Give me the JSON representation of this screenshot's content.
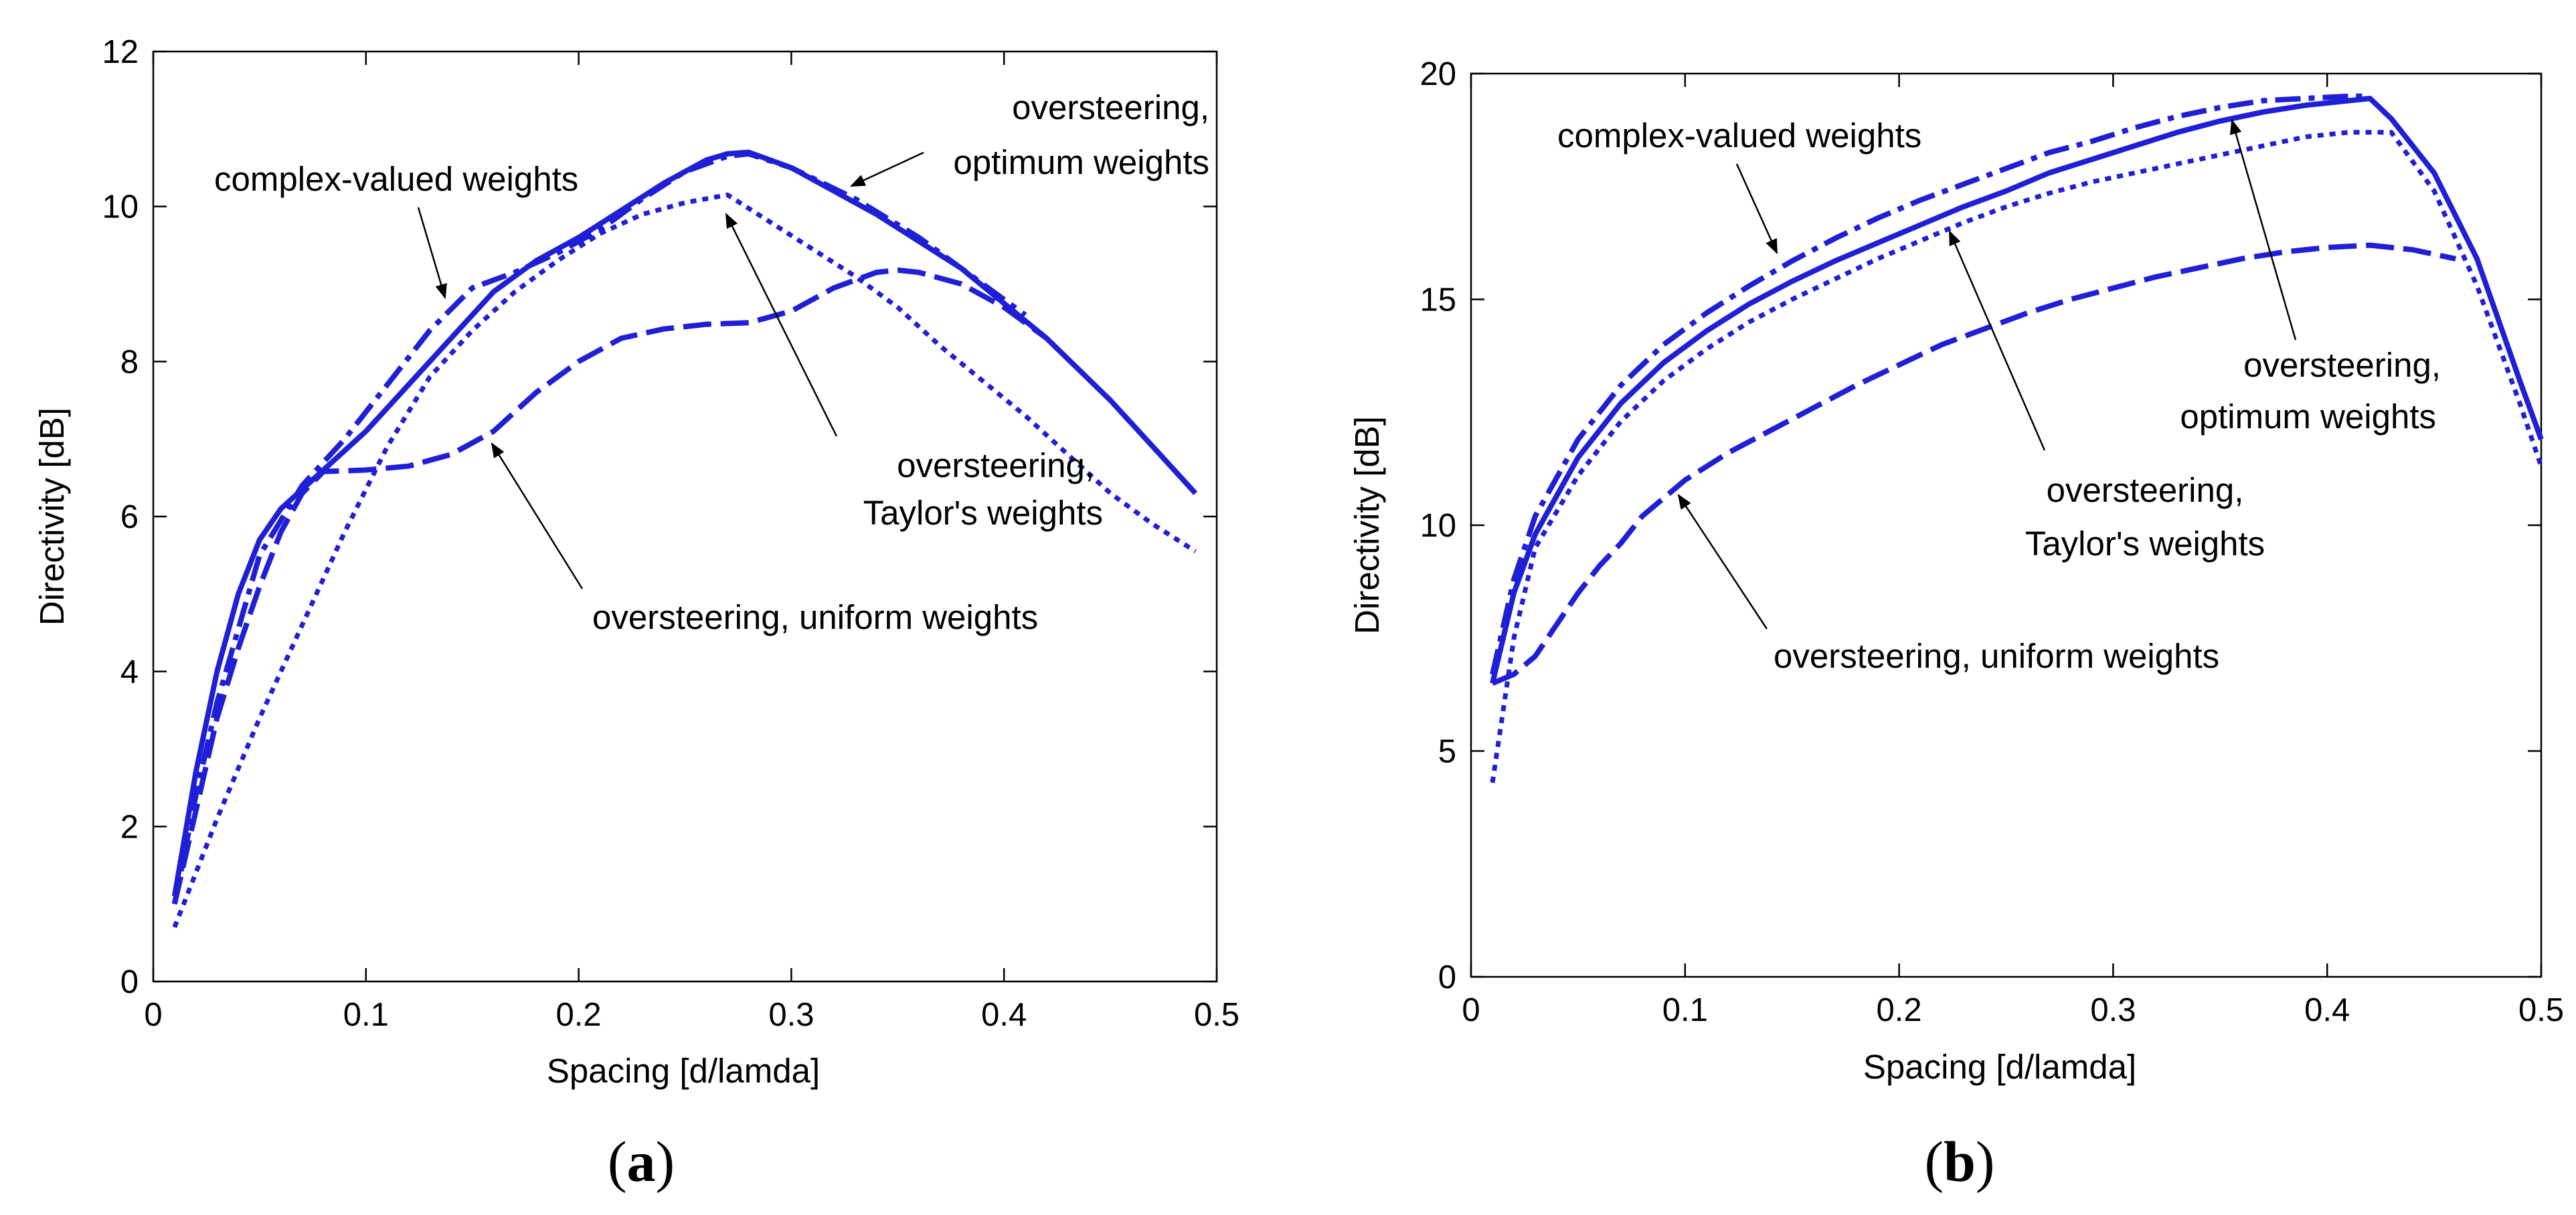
{
  "chart_data": [
    {
      "type": "line",
      "panel_label": "a",
      "xlabel": "Spacing [d/lamda]",
      "ylabel": "Directivity [dB]",
      "xlim": [
        0,
        0.5
      ],
      "ylim": [
        0,
        12
      ],
      "xticks": [
        0,
        0.1,
        0.2,
        0.3,
        0.4,
        0.5
      ],
      "xtick_labels": [
        "0",
        "0.1",
        "0.2",
        "0.3",
        "0.4",
        "0.5"
      ],
      "yticks": [
        0,
        2,
        4,
        6,
        8,
        10,
        12
      ],
      "ytick_labels": [
        "0",
        "2",
        "4",
        "6",
        "8",
        "10",
        "12"
      ],
      "color": "#1f1fd6",
      "series": [
        {
          "name": "oversteering, optimum weights",
          "style": "solid",
          "x": [
            0.01,
            0.02,
            0.03,
            0.04,
            0.05,
            0.06,
            0.08,
            0.1,
            0.12,
            0.14,
            0.16,
            0.18,
            0.2,
            0.22,
            0.24,
            0.26,
            0.27,
            0.28,
            0.3,
            0.32,
            0.34,
            0.36,
            0.38,
            0.4,
            0.42,
            0.45,
            0.47,
            0.49
          ],
          "y": [
            1.1,
            2.7,
            4.0,
            5.0,
            5.7,
            6.1,
            6.6,
            7.1,
            7.7,
            8.3,
            8.9,
            9.3,
            9.6,
            9.95,
            10.3,
            10.6,
            10.68,
            10.7,
            10.5,
            10.2,
            9.9,
            9.55,
            9.2,
            8.75,
            8.3,
            7.5,
            6.9,
            6.3
          ]
        },
        {
          "name": "complex-valued weights",
          "style": "dashdot",
          "x": [
            0.01,
            0.02,
            0.03,
            0.05,
            0.07,
            0.09,
            0.11,
            0.13,
            0.15,
            0.17,
            0.19,
            0.21,
            0.23,
            0.25,
            0.27,
            0.28,
            0.3,
            0.33,
            0.36,
            0.39,
            0.41
          ],
          "y": [
            1.0,
            2.4,
            3.6,
            5.5,
            6.4,
            7.0,
            7.7,
            8.4,
            8.95,
            9.15,
            9.4,
            9.7,
            10.1,
            10.45,
            10.65,
            10.68,
            10.5,
            10.1,
            9.6,
            9.0,
            8.6
          ]
        },
        {
          "name": "oversteering, Taylor's weights",
          "style": "dotted",
          "x": [
            0.01,
            0.03,
            0.05,
            0.07,
            0.09,
            0.11,
            0.13,
            0.15,
            0.17,
            0.19,
            0.21,
            0.23,
            0.25,
            0.27,
            0.29,
            0.31,
            0.33,
            0.35,
            0.37,
            0.39,
            0.41,
            0.43,
            0.45,
            0.47,
            0.49
          ],
          "y": [
            0.7,
            2.1,
            3.4,
            4.6,
            5.8,
            6.9,
            7.8,
            8.4,
            8.9,
            9.3,
            9.65,
            9.9,
            10.05,
            10.15,
            9.8,
            9.45,
            9.1,
            8.7,
            8.2,
            7.75,
            7.3,
            6.8,
            6.3,
            5.9,
            5.55
          ]
        },
        {
          "name": "oversteering, uniform weights",
          "style": "dashed",
          "x": [
            0.01,
            0.02,
            0.03,
            0.04,
            0.05,
            0.06,
            0.07,
            0.08,
            0.1,
            0.12,
            0.14,
            0.16,
            0.18,
            0.2,
            0.22,
            0.24,
            0.26,
            0.28,
            0.3,
            0.32,
            0.34,
            0.35,
            0.36,
            0.38,
            0.4,
            0.42
          ],
          "y": [
            1.0,
            2.2,
            3.4,
            4.3,
            5.1,
            5.8,
            6.3,
            6.58,
            6.6,
            6.65,
            6.8,
            7.1,
            7.6,
            8.0,
            8.3,
            8.42,
            8.48,
            8.5,
            8.65,
            8.95,
            9.15,
            9.18,
            9.15,
            9.0,
            8.7,
            8.3
          ]
        }
      ],
      "annotations": [
        {
          "lines": [
            "complex-valued weights"
          ],
          "target_series": "complex-valued weights"
        },
        {
          "lines": [
            "oversteering,",
            "optimum weights"
          ],
          "target_series": "oversteering, optimum weights"
        },
        {
          "lines": [
            "oversteering,",
            "Taylor's weights"
          ],
          "target_series": "oversteering, Taylor's weights"
        },
        {
          "lines": [
            "oversteering, uniform weights"
          ],
          "target_series": "oversteering, uniform weights"
        }
      ]
    },
    {
      "type": "line",
      "panel_label": "b",
      "xlabel": "Spacing [d/lamda]",
      "ylabel": "Directivity [dB]",
      "xlim": [
        0,
        0.5
      ],
      "ylim": [
        0,
        20
      ],
      "xticks": [
        0,
        0.1,
        0.2,
        0.3,
        0.4,
        0.5
      ],
      "xtick_labels": [
        "0",
        "0.1",
        "0.2",
        "0.3",
        "0.4",
        "0.5"
      ],
      "yticks": [
        0,
        5,
        10,
        15,
        20
      ],
      "ytick_labels": [
        "0",
        "5",
        "10",
        "15",
        "20"
      ],
      "color": "#1f1fd6",
      "series": [
        {
          "name": "oversteering, optimum weights",
          "style": "solid",
          "x": [
            0.01,
            0.02,
            0.03,
            0.05,
            0.07,
            0.09,
            0.11,
            0.13,
            0.15,
            0.17,
            0.19,
            0.21,
            0.23,
            0.25,
            0.27,
            0.29,
            0.31,
            0.33,
            0.35,
            0.37,
            0.39,
            0.41,
            0.42,
            0.43,
            0.45,
            0.47,
            0.49,
            0.5
          ],
          "y": [
            6.5,
            8.5,
            9.8,
            11.5,
            12.7,
            13.6,
            14.3,
            14.9,
            15.4,
            15.85,
            16.25,
            16.65,
            17.05,
            17.4,
            17.8,
            18.1,
            18.4,
            18.7,
            18.95,
            19.15,
            19.3,
            19.4,
            19.45,
            19.0,
            17.8,
            15.9,
            13.2,
            11.9
          ]
        },
        {
          "name": "complex-valued weights",
          "style": "dashdot",
          "x": [
            0.01,
            0.02,
            0.03,
            0.05,
            0.07,
            0.09,
            0.11,
            0.13,
            0.15,
            0.17,
            0.19,
            0.21,
            0.23,
            0.25,
            0.27,
            0.29,
            0.31,
            0.33,
            0.35,
            0.37,
            0.39,
            0.41,
            0.42
          ],
          "y": [
            6.7,
            8.8,
            10.2,
            11.9,
            13.1,
            14.0,
            14.7,
            15.3,
            15.85,
            16.35,
            16.8,
            17.2,
            17.55,
            17.9,
            18.25,
            18.5,
            18.8,
            19.05,
            19.25,
            19.4,
            19.45,
            19.5,
            19.5
          ]
        },
        {
          "name": "oversteering, Taylor's weights",
          "style": "dotted",
          "x": [
            0.01,
            0.02,
            0.03,
            0.05,
            0.07,
            0.09,
            0.11,
            0.13,
            0.15,
            0.17,
            0.19,
            0.21,
            0.23,
            0.25,
            0.27,
            0.29,
            0.31,
            0.33,
            0.35,
            0.37,
            0.39,
            0.41,
            0.43,
            0.45,
            0.47,
            0.49,
            0.5
          ],
          "y": [
            4.3,
            7.5,
            9.5,
            11.1,
            12.3,
            13.2,
            13.9,
            14.5,
            15.0,
            15.45,
            15.9,
            16.3,
            16.7,
            17.05,
            17.35,
            17.6,
            17.8,
            18.0,
            18.2,
            18.4,
            18.6,
            18.7,
            18.7,
            17.4,
            15.3,
            12.7,
            11.3
          ]
        },
        {
          "name": "oversteering, uniform weights",
          "style": "dashed",
          "x": [
            0.01,
            0.02,
            0.03,
            0.04,
            0.05,
            0.06,
            0.07,
            0.08,
            0.09,
            0.1,
            0.12,
            0.14,
            0.16,
            0.18,
            0.2,
            0.22,
            0.24,
            0.26,
            0.28,
            0.3,
            0.32,
            0.34,
            0.36,
            0.38,
            0.4,
            0.42,
            0.44,
            0.46
          ],
          "y": [
            6.5,
            6.7,
            7.1,
            7.8,
            8.5,
            9.1,
            9.6,
            10.2,
            10.6,
            11.0,
            11.6,
            12.1,
            12.6,
            13.1,
            13.55,
            14.0,
            14.35,
            14.7,
            15.0,
            15.25,
            15.5,
            15.7,
            15.9,
            16.05,
            16.15,
            16.2,
            16.1,
            15.9
          ]
        }
      ],
      "annotations": [
        {
          "lines": [
            "complex-valued weights"
          ],
          "target_series": "complex-valued weights"
        },
        {
          "lines": [
            "oversteering,",
            "optimum weights"
          ],
          "target_series": "oversteering, optimum weights"
        },
        {
          "lines": [
            "oversteering,",
            "Taylor's weights"
          ],
          "target_series": "oversteering, Taylor's weights"
        },
        {
          "lines": [
            "oversteering, uniform weights"
          ],
          "target_series": "oversteering, uniform weights"
        }
      ]
    }
  ]
}
